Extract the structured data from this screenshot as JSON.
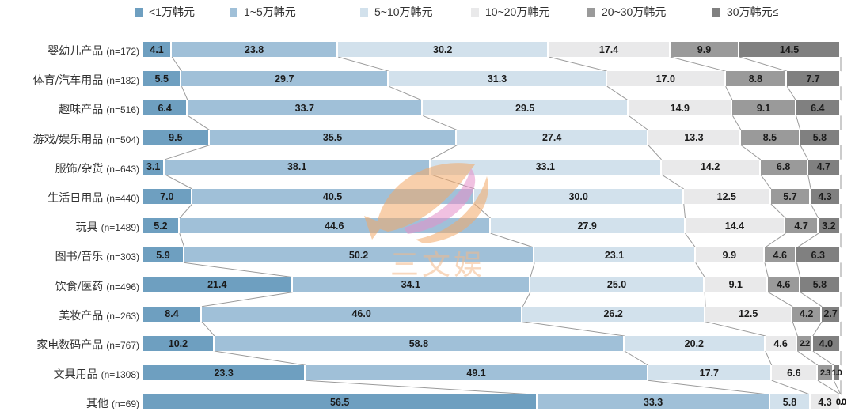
{
  "legend": {
    "items": [
      {
        "label": "<1万韩元",
        "color": "#6e9fc0"
      },
      {
        "label": "1~5万韩元",
        "color": "#a0c0d8"
      },
      {
        "label": "5~10万韩元",
        "color": "#d2e1ec"
      },
      {
        "label": "10~20万韩元",
        "color": "#e9e9ea"
      },
      {
        "label": "20~30万韩元",
        "color": "#9a9a9a"
      },
      {
        "label": "30万韩元≤",
        "color": "#808080"
      }
    ]
  },
  "watermark": {
    "text": "三文娱"
  },
  "chart_data": {
    "type": "bar",
    "orientation": "horizontal",
    "stacked": "100%",
    "title": "",
    "xlabel": "",
    "ylabel": "",
    "xlim": [
      0,
      100
    ],
    "legend_position": "top",
    "grid": false,
    "categories": [
      "婴幼儿产品 (n=172)",
      "体育/汽车用品 (n=182)",
      "趣味产品 (n=516)",
      "游戏/娱乐用品 (n=504)",
      "服饰/杂货 (n=643)",
      "生活日用品 (n=440)",
      "玩具 (n=1489)",
      "图书/音乐 (n=303)",
      "饮食/医药 (n=496)",
      "美妆产品 (n=263)",
      "家电数码产品 (n=767)",
      "文具用品 (n=1308)",
      "其他 (n=69)"
    ],
    "rows": [
      {
        "name": "婴幼儿产品",
        "n": "(n=172)"
      },
      {
        "name": "体育/汽车用品",
        "n": "(n=182)"
      },
      {
        "name": "趣味产品",
        "n": "(n=516)"
      },
      {
        "name": "游戏/娱乐用品",
        "n": "(n=504)"
      },
      {
        "name": "服饰/杂货",
        "n": "(n=643)"
      },
      {
        "name": "生活日用品",
        "n": "(n=440)"
      },
      {
        "name": "玩具",
        "n": "(n=1489)"
      },
      {
        "name": "图书/音乐",
        "n": "(n=303)"
      },
      {
        "name": "饮食/医药",
        "n": "(n=496)"
      },
      {
        "name": "美妆产品",
        "n": "(n=263)"
      },
      {
        "name": "家电数码产品",
        "n": "(n=767)"
      },
      {
        "name": "文具用品",
        "n": "(n=1308)"
      },
      {
        "name": "其他",
        "n": "(n=69)"
      }
    ],
    "series": [
      {
        "name": "<1万韩元",
        "values": [
          4.1,
          5.5,
          6.4,
          9.5,
          3.1,
          7.0,
          5.2,
          5.9,
          21.4,
          8.4,
          10.2,
          23.3,
          56.5
        ]
      },
      {
        "name": "1~5万韩元",
        "values": [
          23.8,
          29.7,
          33.7,
          35.5,
          38.1,
          40.5,
          44.6,
          50.2,
          34.1,
          46.0,
          58.8,
          49.1,
          33.3
        ]
      },
      {
        "name": "5~10万韩元",
        "values": [
          30.2,
          31.3,
          29.5,
          27.4,
          33.1,
          30.0,
          27.9,
          23.1,
          25.0,
          26.2,
          20.2,
          17.7,
          5.8
        ]
      },
      {
        "name": "10~20万韩元",
        "values": [
          17.4,
          17.0,
          14.9,
          13.3,
          14.2,
          12.5,
          14.4,
          9.9,
          9.1,
          12.5,
          4.6,
          6.6,
          4.3
        ]
      },
      {
        "name": "20~30万韩元",
        "values": [
          9.9,
          8.8,
          9.1,
          8.5,
          6.8,
          5.7,
          4.7,
          4.6,
          4.6,
          4.2,
          2.2,
          2.3,
          0.0
        ]
      },
      {
        "name": "30万韩元≤",
        "values": [
          14.5,
          7.7,
          6.4,
          5.8,
          4.7,
          4.3,
          3.2,
          6.3,
          5.8,
          2.7,
          4.0,
          1.0,
          0.0
        ]
      }
    ]
  }
}
